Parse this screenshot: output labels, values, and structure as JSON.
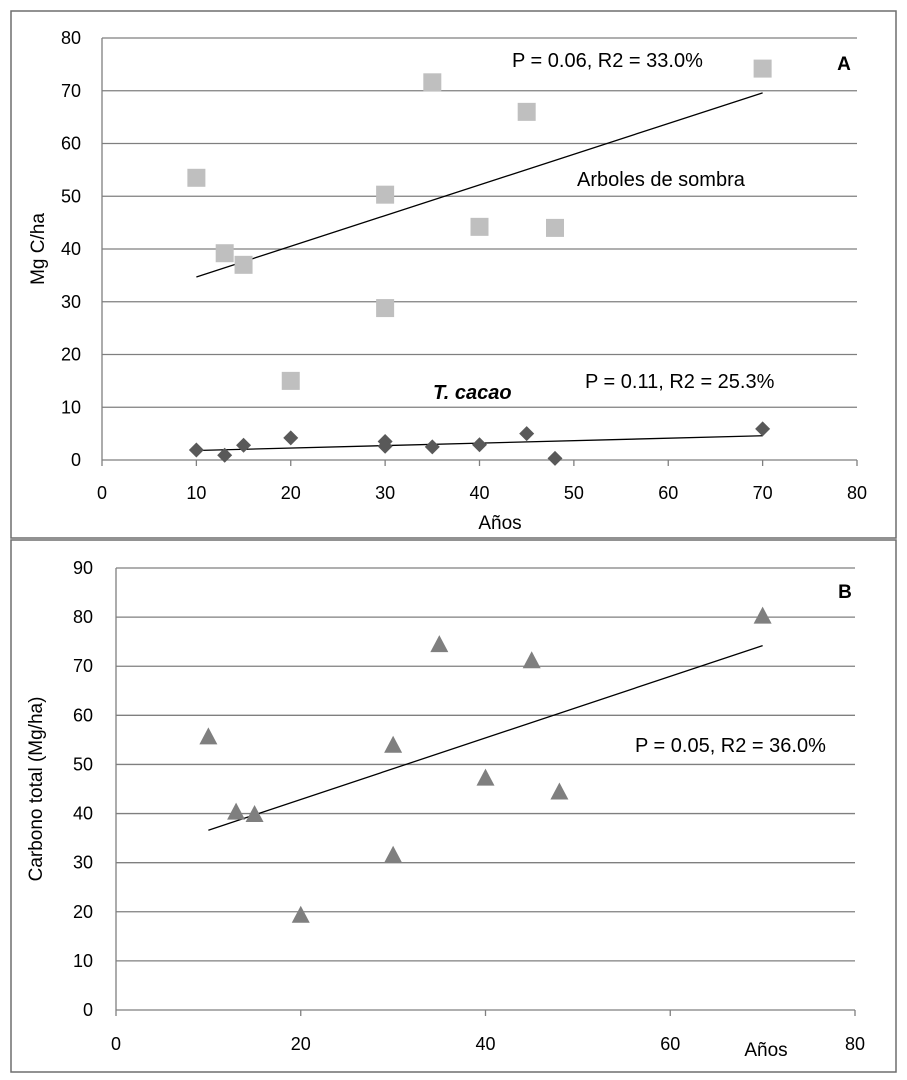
{
  "chart_data": [
    {
      "panel": "A",
      "type": "scatter",
      "xlabel": "Años",
      "ylabel": "Mg C/ha",
      "xlim": [
        0,
        80
      ],
      "ylim": [
        0,
        80
      ],
      "xticks": [
        0,
        10,
        20,
        30,
        40,
        50,
        60,
        70,
        80
      ],
      "yticks": [
        0,
        10,
        20,
        30,
        40,
        50,
        60,
        70,
        80
      ],
      "grid": true,
      "series": [
        {
          "name": "Arboles de sombra",
          "marker": "square",
          "color": "#bfbfbf",
          "x": [
            10,
            13,
            15,
            20,
            30,
            30,
            35,
            40,
            45,
            48,
            70
          ],
          "y": [
            53.5,
            39.2,
            37.0,
            15.0,
            50.3,
            28.8,
            71.6,
            44.2,
            66.0,
            44.0,
            74.2
          ],
          "trend": {
            "x": [
              10,
              70
            ],
            "y": [
              34.7,
              69.6
            ]
          },
          "stats": "P = 0.06, R2 = 33.0%"
        },
        {
          "name": "T. cacao",
          "marker": "diamond",
          "color": "#595959",
          "x": [
            10,
            13,
            15,
            20,
            30,
            30,
            35,
            40,
            45,
            48,
            70
          ],
          "y": [
            1.9,
            0.9,
            2.8,
            4.2,
            3.5,
            2.6,
            2.5,
            2.9,
            5.0,
            0.3,
            5.9
          ],
          "trend": {
            "x": [
              10,
              70
            ],
            "y": [
              1.8,
              4.6
            ]
          },
          "stats": "P = 0.11, R2 = 25.3%"
        }
      ]
    },
    {
      "panel": "B",
      "type": "scatter",
      "xlabel": "Años",
      "ylabel": "Carbono  total (Mg/ha)",
      "xlim": [
        0,
        80
      ],
      "ylim": [
        0,
        90
      ],
      "xticks": [
        0,
        20,
        40,
        60,
        80
      ],
      "yticks": [
        0,
        10,
        20,
        30,
        40,
        50,
        60,
        70,
        80,
        90
      ],
      "grid": true,
      "series": [
        {
          "name": "Carbono total",
          "marker": "triangle",
          "color": "#7f7f7f",
          "x": [
            10,
            13,
            15,
            20,
            30,
            30,
            35,
            40,
            45,
            48,
            70
          ],
          "y": [
            55.5,
            40.2,
            39.7,
            19.2,
            53.8,
            31.4,
            74.3,
            47.1,
            71.0,
            44.3,
            80.1
          ],
          "trend": {
            "x": [
              10,
              70
            ],
            "y": [
              36.6,
              74.2
            ]
          },
          "stats": "P = 0.05, R2 = 36.0%"
        }
      ]
    }
  ]
}
